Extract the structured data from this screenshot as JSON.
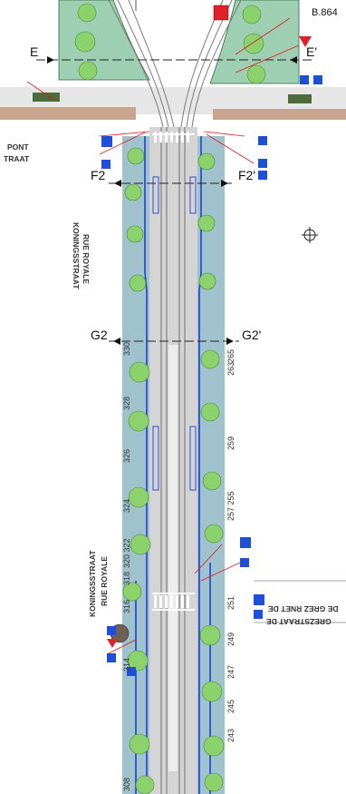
{
  "plan": {
    "drawing_code": "B.864",
    "section_markers": [
      {
        "id": "E",
        "label": "E"
      },
      {
        "id": "E_prime",
        "label": "E'"
      },
      {
        "id": "F2",
        "label": "F2"
      },
      {
        "id": "F2_prime",
        "label": "F2'"
      },
      {
        "id": "G2",
        "label": "G2"
      },
      {
        "id": "G2_prime",
        "label": "G2'"
      }
    ],
    "streets": {
      "rue_royale_fr": "RUE ROYALE",
      "koningsstraat_nl": "KONINGSSTRAAT",
      "koningsstraat_lower": "KONINGSSTRAAT",
      "rue_royale_lower": "RUE ROYALE",
      "pont_fragment": "PONT",
      "straat_fragment": "TRAAT",
      "rue_de_grez_fragment": "DE GREZ RNET DE",
      "grezstraat_fragment": "GREZSTRAAT DE"
    },
    "house_numbers_left": [
      "330",
      "328",
      "326",
      "324",
      "320 322",
      "318",
      "316",
      "314",
      "308"
    ],
    "house_numbers_right": [
      "265",
      "263",
      "259",
      "257 255",
      "251",
      "249",
      "247",
      "245",
      "243"
    ],
    "north_symbol": "north-arrow-icon",
    "colors": {
      "tram_track": "#7a7a7a",
      "roadway": "#c8c8c8",
      "sidewalk": "#9fc2cc",
      "curb_line": "#1f3fd6",
      "tree_fill": "#8bd16c",
      "sign_blue": "#1e4fd8",
      "sign_red": "#e0202a",
      "annotation_red": "#e21a1a",
      "bike_strip": "#c7a58f"
    }
  }
}
